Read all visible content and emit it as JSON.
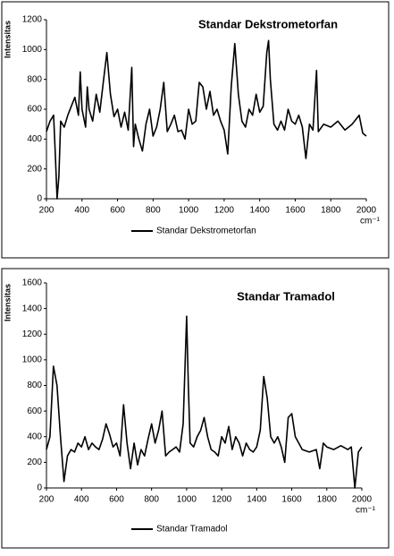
{
  "chart_data": [
    {
      "type": "line",
      "title": "Standar Dekstrometorfan",
      "y_label": "Intensitas",
      "x_label": "cm⁻¹",
      "series": [
        {
          "name": "Standar Dekstrometorfan",
          "color": "#000000",
          "x": [
            200,
            220,
            240,
            250,
            260,
            270,
            280,
            300,
            320,
            340,
            360,
            380,
            390,
            400,
            420,
            430,
            440,
            460,
            480,
            500,
            520,
            540,
            560,
            580,
            600,
            620,
            640,
            660,
            680,
            690,
            700,
            720,
            740,
            760,
            780,
            800,
            820,
            840,
            860,
            880,
            900,
            920,
            940,
            960,
            980,
            1000,
            1020,
            1040,
            1060,
            1080,
            1100,
            1120,
            1140,
            1160,
            1180,
            1200,
            1220,
            1240,
            1260,
            1280,
            1300,
            1320,
            1340,
            1360,
            1380,
            1400,
            1420,
            1440,
            1450,
            1460,
            1480,
            1500,
            1520,
            1540,
            1560,
            1580,
            1600,
            1620,
            1640,
            1660,
            1680,
            1700,
            1720,
            1730,
            1760,
            1800,
            1840,
            1880,
            1920,
            1960,
            1980,
            2000
          ],
          "values": [
            450,
            520,
            560,
            300,
            0,
            150,
            520,
            480,
            560,
            620,
            680,
            560,
            850,
            600,
            480,
            750,
            600,
            520,
            700,
            580,
            780,
            980,
            700,
            550,
            600,
            480,
            580,
            460,
            880,
            350,
            500,
            400,
            320,
            500,
            600,
            420,
            480,
            600,
            780,
            450,
            500,
            560,
            450,
            460,
            400,
            600,
            500,
            520,
            780,
            750,
            600,
            720,
            560,
            600,
            520,
            460,
            300,
            750,
            1040,
            700,
            520,
            480,
            600,
            560,
            700,
            580,
            620,
            980,
            1060,
            800,
            500,
            460,
            520,
            460,
            600,
            520,
            500,
            560,
            480,
            270,
            500,
            460,
            860,
            450,
            500,
            480,
            520,
            460,
            500,
            560,
            440,
            420
          ]
        }
      ],
      "xlim": [
        200,
        2000
      ],
      "xticks": [
        200,
        400,
        600,
        800,
        1000,
        1200,
        1400,
        1600,
        1800,
        2000
      ],
      "ylim": [
        0,
        1200
      ],
      "yticks": [
        0,
        200,
        400,
        600,
        800,
        1000,
        1200
      ],
      "legend": "bottom"
    },
    {
      "type": "line",
      "title": "Standar Tramadol",
      "y_label": "Intensitas",
      "x_label": "cm⁻¹",
      "series": [
        {
          "name": "Standar Tramadol",
          "color": "#000000",
          "x": [
            200,
            220,
            240,
            260,
            280,
            300,
            320,
            340,
            360,
            380,
            400,
            420,
            440,
            460,
            480,
            500,
            520,
            540,
            560,
            580,
            600,
            620,
            640,
            660,
            680,
            700,
            720,
            740,
            760,
            780,
            800,
            820,
            840,
            860,
            880,
            900,
            920,
            940,
            960,
            980,
            1000,
            1010,
            1020,
            1040,
            1060,
            1080,
            1100,
            1120,
            1140,
            1160,
            1180,
            1200,
            1220,
            1240,
            1260,
            1280,
            1300,
            1320,
            1340,
            1360,
            1380,
            1400,
            1420,
            1440,
            1460,
            1480,
            1500,
            1520,
            1540,
            1560,
            1580,
            1600,
            1620,
            1640,
            1660,
            1700,
            1740,
            1760,
            1780,
            1800,
            1840,
            1880,
            1920,
            1940,
            1960,
            1980,
            2000
          ],
          "values": [
            300,
            400,
            950,
            800,
            400,
            50,
            250,
            300,
            280,
            350,
            320,
            400,
            300,
            350,
            320,
            300,
            380,
            500,
            420,
            320,
            350,
            250,
            650,
            350,
            150,
            350,
            180,
            300,
            250,
            380,
            500,
            350,
            450,
            600,
            250,
            280,
            300,
            320,
            280,
            500,
            1340,
            800,
            350,
            320,
            400,
            450,
            550,
            400,
            300,
            280,
            250,
            400,
            350,
            480,
            300,
            400,
            350,
            250,
            350,
            300,
            280,
            320,
            450,
            870,
            700,
            400,
            350,
            400,
            320,
            200,
            550,
            580,
            400,
            350,
            300,
            280,
            300,
            150,
            350,
            320,
            300,
            330,
            300,
            320,
            0,
            280,
            320
          ]
        }
      ],
      "xlim": [
        200,
        2000
      ],
      "xticks": [
        200,
        400,
        600,
        800,
        1000,
        1200,
        1400,
        1600,
        1800,
        2000
      ],
      "ylim": [
        0,
        1600
      ],
      "yticks": [
        0,
        200,
        400,
        600,
        800,
        1000,
        1200,
        1400,
        1600
      ],
      "legend": "bottom"
    }
  ]
}
